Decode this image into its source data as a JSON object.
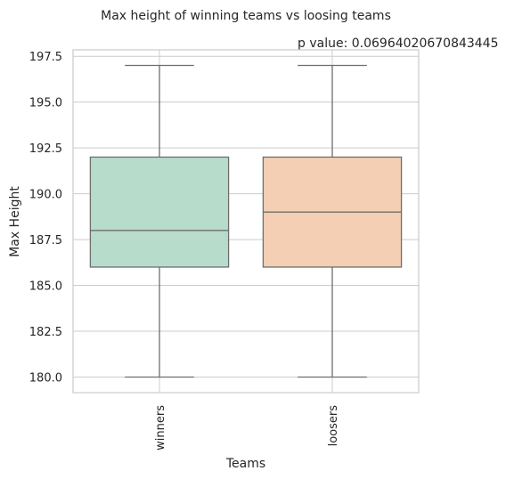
{
  "chart_data": {
    "type": "box",
    "title": "Max height of winning teams vs loosing teams",
    "annotation": "p value: 0.06964020670843445",
    "xlabel": "Teams",
    "ylabel": "Max Height",
    "ylim": [
      179.15,
      197.85
    ],
    "yticks": [
      180.0,
      182.5,
      185.0,
      187.5,
      190.0,
      192.5,
      195.0,
      197.5
    ],
    "ytick_labels": [
      "180.0",
      "182.5",
      "185.0",
      "187.5",
      "190.0",
      "192.5",
      "195.0",
      "197.5"
    ],
    "grid": true,
    "categories": [
      "winners",
      "loosers"
    ],
    "boxes": [
      {
        "category": "winners",
        "min": 180,
        "q1": 186,
        "median": 188,
        "q3": 192,
        "max": 197,
        "color": "#b8dccc"
      },
      {
        "category": "loosers",
        "min": 180,
        "q1": 186,
        "median": 189,
        "q3": 192,
        "max": 197,
        "color": "#f4cfb3"
      }
    ]
  }
}
